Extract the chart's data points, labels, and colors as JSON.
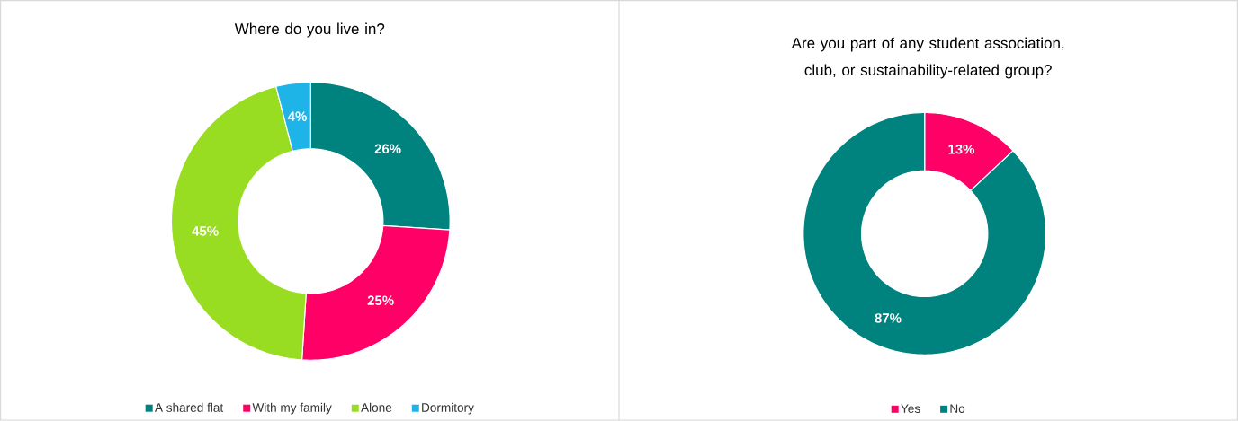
{
  "chart_data": [
    {
      "type": "donut",
      "title": "Where do you live in?",
      "categories": [
        "A shared flat",
        "With my family",
        "Alone",
        "Dormitory"
      ],
      "values": [
        26,
        25,
        45,
        4
      ],
      "value_labels": [
        "26%",
        "25%",
        "45%",
        "4%"
      ],
      "colors": [
        "#00827f",
        "#ff0066",
        "#99dd22",
        "#1fb4e8"
      ],
      "legend": "bottom"
    },
    {
      "type": "donut",
      "title": "Are you part of any student association, club, or sustainability-related group?",
      "categories": [
        "Yes",
        "No"
      ],
      "values": [
        13,
        87
      ],
      "value_labels": [
        "13%",
        "87%"
      ],
      "colors": [
        "#ff0066",
        "#00827f"
      ],
      "legend": "bottom"
    }
  ]
}
